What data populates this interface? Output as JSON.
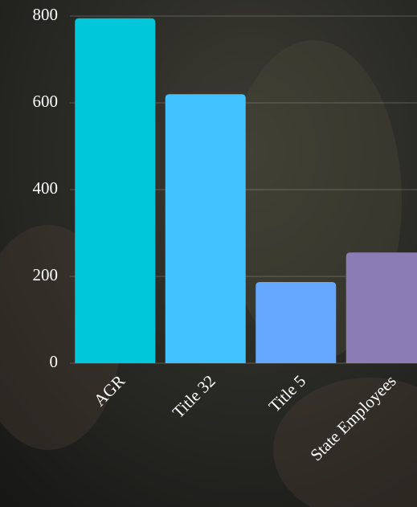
{
  "chart_data": {
    "type": "bar",
    "categories": [
      "AGR",
      "Title 32",
      "Title 5",
      "State Employees"
    ],
    "values": [
      795,
      620,
      187,
      255
    ],
    "colors": [
      "#00c8da",
      "#42c3ff",
      "#66a8ff",
      "#8a7cb4"
    ],
    "ylim": [
      0,
      800
    ],
    "yticks": [
      0,
      200,
      400,
      600,
      800
    ],
    "grid": true
  }
}
